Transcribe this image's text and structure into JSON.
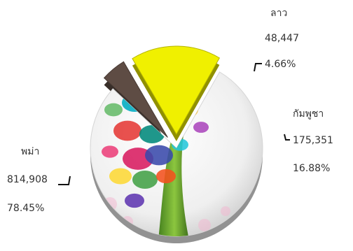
{
  "chart_data": {
    "type": "pie",
    "title": "",
    "slices": [
      {
        "label": "พม่า",
        "value": 814908,
        "value_text": "814,908",
        "percent_text": "78.45%",
        "color": "#f4f4f4",
        "exploded": false,
        "has_artwork": true
      },
      {
        "label": "ลาว",
        "value": 48447,
        "value_text": "48,447",
        "percent_text": "4.66%",
        "color": "#5e4c44",
        "exploded": true
      },
      {
        "label": "กัมพูชา",
        "value": 175351,
        "value_text": "175,351",
        "percent_text": "16.88%",
        "color": "#f0f000",
        "exploded": true
      }
    ],
    "start_angle_deg": -60,
    "label_color": "#333333",
    "leader_color": "#111111"
  }
}
